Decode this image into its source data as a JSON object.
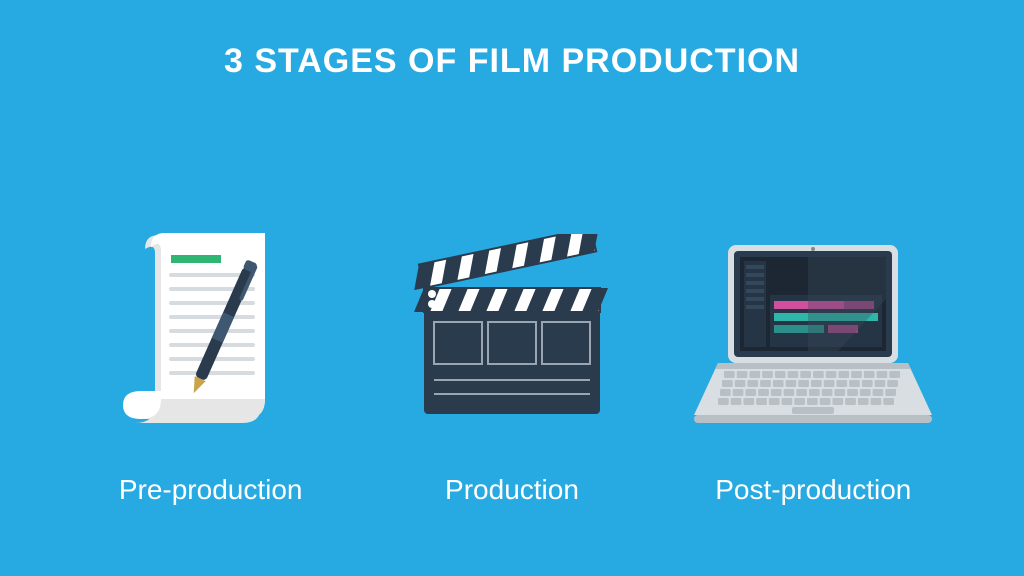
{
  "background_color": "#27a9e1",
  "title": {
    "text": "3 STAGES OF FILM PRODUCTION",
    "color": "#ffffff",
    "fontsize": 34
  },
  "label_style": {
    "color": "#ffffff",
    "fontsize": 28
  },
  "stages": [
    {
      "label": "Pre-production",
      "icon": "script-icon"
    },
    {
      "label": "Production",
      "icon": "clapper-icon"
    },
    {
      "label": "Post-production",
      "icon": "laptop-icon"
    }
  ],
  "icons": {
    "script": {
      "paper_color": "#ffffff",
      "shadow_color": "#e6e6e6",
      "line_color": "#d6dbe0",
      "bar_color": "#2fb673",
      "pen_body": "#2a3b4d",
      "pen_grip": "#3d5870",
      "pen_tip": "#c9a44a"
    },
    "clapper": {
      "body_color": "#2a3b4d",
      "stripe_light": "#ffffff",
      "stripe_dark": "#2a3b4d",
      "hinge_color": "#ffffff",
      "line_color": "#9aa5b1"
    },
    "laptop": {
      "body_color": "#d9dee2",
      "body_shadow": "#b8c0c6",
      "bezel_color": "#2a3b4d",
      "screen_color": "#1c2733",
      "key_color": "#b8c0c6",
      "track_magenta": "#d24f9e",
      "track_teal": "#2fb6a8",
      "track_bg": "#263545",
      "glare_color": "#3a4b5d"
    }
  }
}
